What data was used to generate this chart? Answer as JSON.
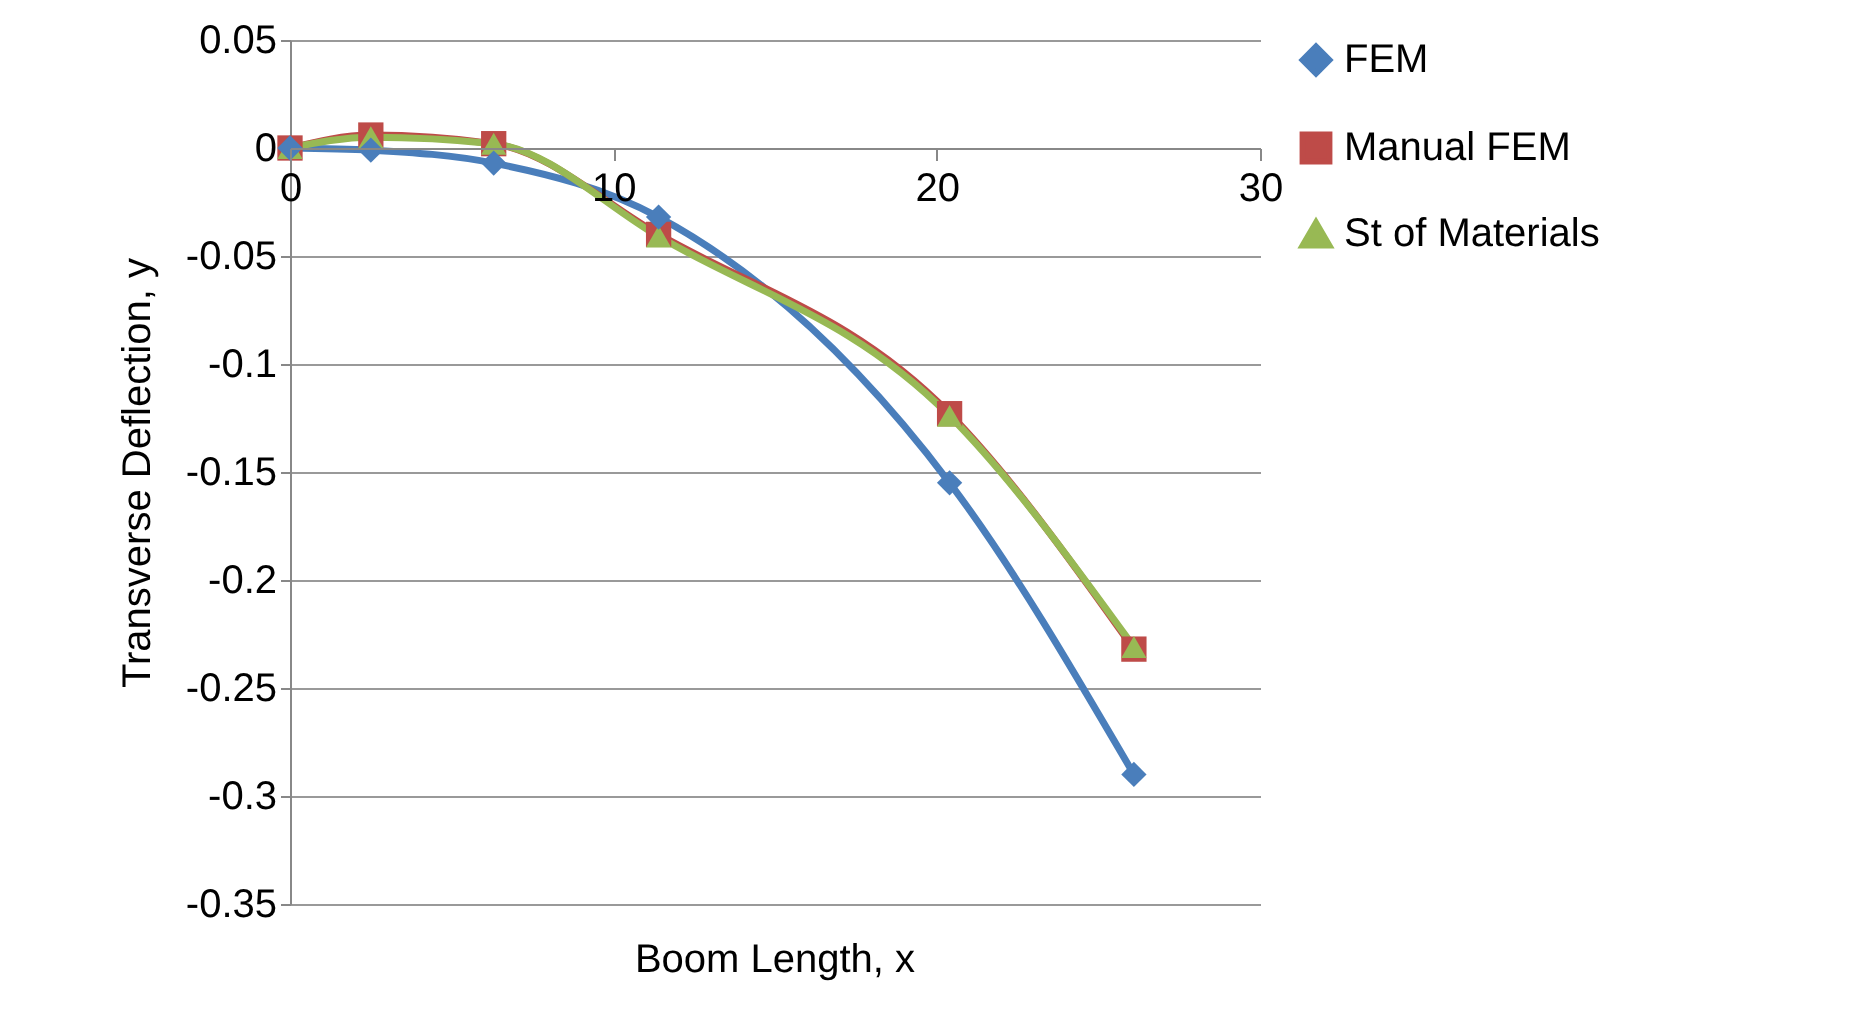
{
  "chart_data": {
    "type": "line",
    "xlabel": "Boom Length, x",
    "ylabel": "Transverse Deflection, y",
    "xlim": [
      0,
      30
    ],
    "xticks": [
      0,
      10,
      20,
      30
    ],
    "ylim": [
      -0.35,
      0.05
    ],
    "yticks": [
      -0.35,
      -0.3,
      -0.25,
      -0.2,
      -0.15,
      -0.1,
      -0.05,
      0,
      0.05
    ],
    "grid": "y",
    "legend": "right",
    "series": [
      {
        "name": "FEM",
        "color": "#4a7ebb",
        "marker": "diamond",
        "x": [
          0,
          2.5,
          6.3,
          11.4,
          20.4,
          26.1
        ],
        "values": [
          0,
          -0.001,
          -0.007,
          -0.032,
          -0.155,
          -0.29
        ]
      },
      {
        "name": "Manual FEM",
        "color": "#be4b48",
        "marker": "square",
        "x": [
          0,
          2.5,
          6.3,
          11.4,
          20.4,
          26.1
        ],
        "values": [
          0,
          0.006,
          0.002,
          -0.04,
          -0.123,
          -0.232
        ]
      },
      {
        "name": "St of Materials",
        "color": "#98b954",
        "marker": "triangle",
        "x": [
          0,
          2.5,
          6.3,
          11.4,
          20.4,
          26.1
        ],
        "values": [
          0,
          0.005,
          0.002,
          -0.041,
          -0.124,
          -0.231
        ]
      }
    ]
  }
}
